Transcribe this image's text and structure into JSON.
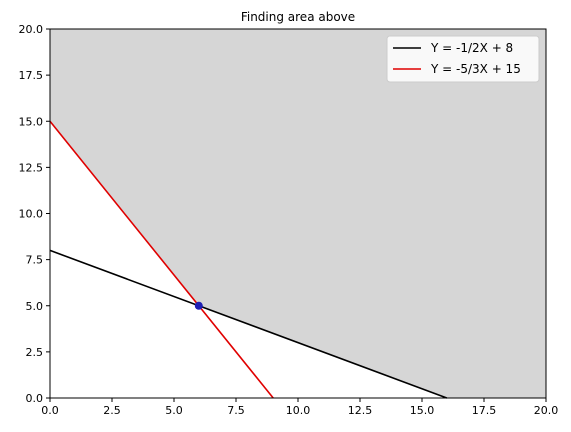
{
  "chart_data": {
    "type": "line",
    "title": "Finding area above",
    "xlabel": "",
    "ylabel": "",
    "xlim": [
      0,
      20
    ],
    "ylim": [
      0,
      20
    ],
    "xticks": [
      "0.0",
      "2.5",
      "5.0",
      "7.5",
      "10.0",
      "12.5",
      "15.0",
      "17.5",
      "20.0"
    ],
    "yticks": [
      "0.0",
      "2.5",
      "5.0",
      "7.5",
      "10.0",
      "12.5",
      "15.0",
      "17.5",
      "20.0"
    ],
    "grid": false,
    "legend_position": "top-right",
    "series": [
      {
        "name": "Y = -1/2X + 8",
        "color": "#000000",
        "x": [
          0,
          16
        ],
        "y": [
          8,
          0
        ]
      },
      {
        "name": "Y = -5/3X + 15",
        "color": "#e00000",
        "x": [
          0,
          9
        ],
        "y": [
          15,
          0
        ]
      }
    ],
    "points": [
      {
        "x": 6,
        "y": 5,
        "color": "#1f1fb4"
      }
    ],
    "shaded_region": {
      "color": "#d6d6d6",
      "boundary": [
        [
          0,
          15
        ],
        [
          6,
          5
        ],
        [
          16,
          0
        ],
        [
          20,
          0
        ],
        [
          20,
          20
        ],
        [
          0,
          20
        ]
      ]
    }
  }
}
